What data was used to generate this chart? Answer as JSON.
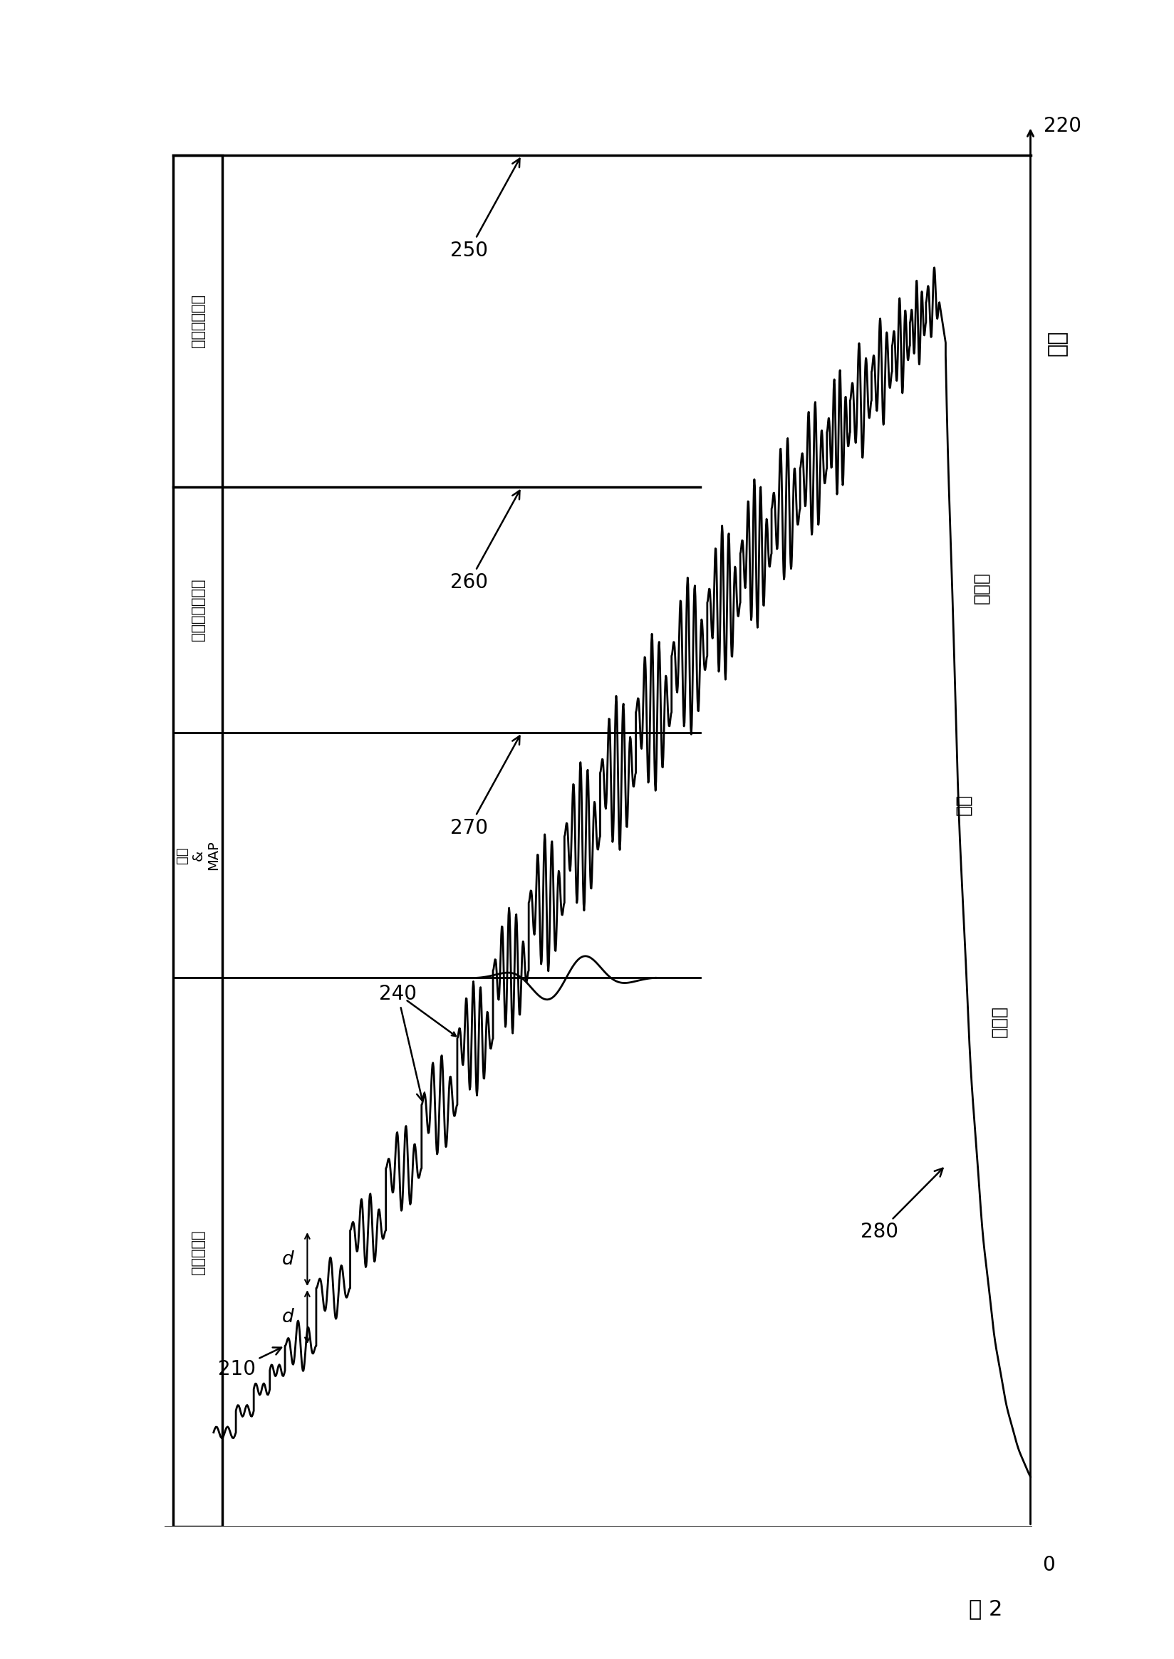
{
  "bg_color": "#ffffff",
  "line_color": "#000000",
  "fig_label": "图 2",
  "time_label": "时间",
  "y_axis_labels": [
    "自动套囊压力",
    "收缩期套囊压力",
    "振幅\n&\nMAP",
    "舒张期压力"
  ],
  "phase_labels": [
    "收缩期",
    "损坏",
    "舒张期"
  ],
  "ref_nums": [
    "210",
    "220",
    "240",
    "250",
    "260",
    "270",
    "280"
  ],
  "zero_label": "0"
}
